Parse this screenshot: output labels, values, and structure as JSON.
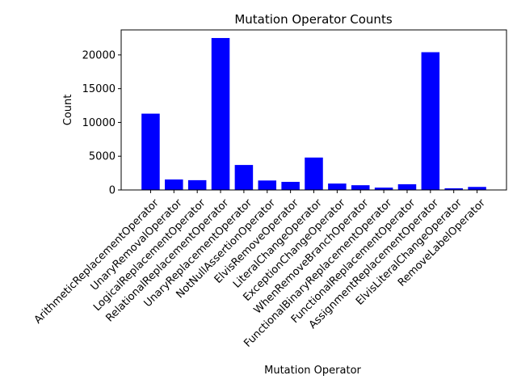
{
  "chart_data": {
    "type": "bar",
    "title": "Mutation Operator Counts",
    "xlabel": "Mutation Operator",
    "ylabel": "Count",
    "categories": [
      "ArithmeticReplacementOperator",
      "UnaryRemovalOperator",
      "LogicalReplacementOperator",
      "RelationalReplacementOperator",
      "UnaryReplacementOperator",
      "NotNullAssertionOperator",
      "ElvisRemoveOperator",
      "LiteralChangeOperator",
      "ExceptionChangeOperator",
      "WhenRemoveBranchOperator",
      "FunctionalBinaryReplacementOperator",
      "FunctionalReplacementOperator",
      "AssignmentReplacementOperator",
      "ElvisLiteralChangeOperator",
      "RemoveLabelOperator"
    ],
    "values": [
      11300,
      1550,
      1450,
      22500,
      3700,
      1400,
      1200,
      4800,
      950,
      700,
      350,
      850,
      20400,
      250,
      450
    ],
    "ylim": [
      0,
      23700
    ],
    "yticks": [
      0,
      5000,
      10000,
      15000,
      20000
    ],
    "bar_color": "#0000ff",
    "grid": false,
    "legend": "none"
  }
}
